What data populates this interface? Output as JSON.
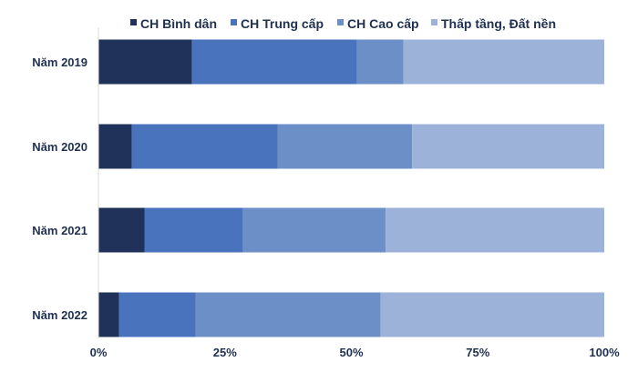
{
  "chart_data": {
    "type": "bar",
    "orientation": "horizontal",
    "stacked": "percent",
    "categories": [
      "Năm 2019",
      "Năm 2020",
      "Năm 2021",
      "Năm 2022"
    ],
    "series": [
      {
        "name": "CH Bình dân",
        "color": "#20325a",
        "values": [
          18.5,
          6.6,
          9.1,
          4.1
        ]
      },
      {
        "name": "CH Trung cấp",
        "color": "#4a73bd",
        "values": [
          32.6,
          28.8,
          19.5,
          15.1
        ]
      },
      {
        "name": "CH Cao cấp",
        "color": "#6b8fc6",
        "values": [
          9.2,
          26.6,
          28.2,
          36.6
        ]
      },
      {
        "name": "Thấp tầng, Đất nền",
        "color": "#9cb2d8",
        "values": [
          39.7,
          38.0,
          43.2,
          44.2
        ]
      }
    ],
    "xlim": [
      0,
      100
    ],
    "x_ticks": [
      "0%",
      "25%",
      "50%",
      "75%",
      "100%"
    ],
    "grid": false,
    "legend": "top"
  }
}
